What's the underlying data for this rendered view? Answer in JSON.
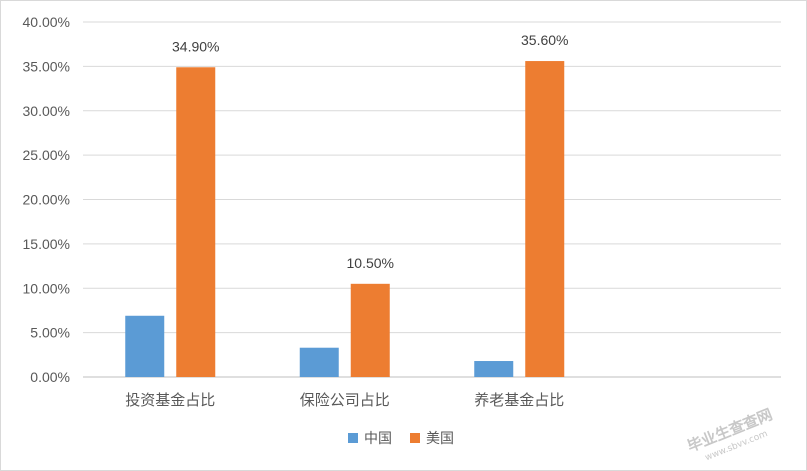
{
  "chart_data": {
    "type": "bar",
    "categories": [
      "投资基金占比",
      "保险公司占比",
      "养老基金占比"
    ],
    "series": [
      {
        "name": "中国",
        "values": [
          6.9,
          3.3,
          1.8
        ],
        "color": "#5b9bd5"
      },
      {
        "name": "美国",
        "values": [
          34.9,
          10.5,
          35.6
        ],
        "color": "#ed7d31"
      }
    ],
    "data_labels": {
      "美国": [
        "34.90%",
        "10.50%",
        "35.60%"
      ]
    },
    "yticks": [
      "0.00%",
      "5.00%",
      "10.00%",
      "15.00%",
      "20.00%",
      "25.00%",
      "30.00%",
      "35.00%",
      "40.00%"
    ],
    "ylim": [
      0,
      40
    ],
    "y_unit": "%",
    "grid": true,
    "legend_position": "bottom",
    "title": "",
    "xlabel": "",
    "ylabel": ""
  },
  "watermark": {
    "main": "毕业生查查网",
    "sub": "www.sbvv.com"
  }
}
